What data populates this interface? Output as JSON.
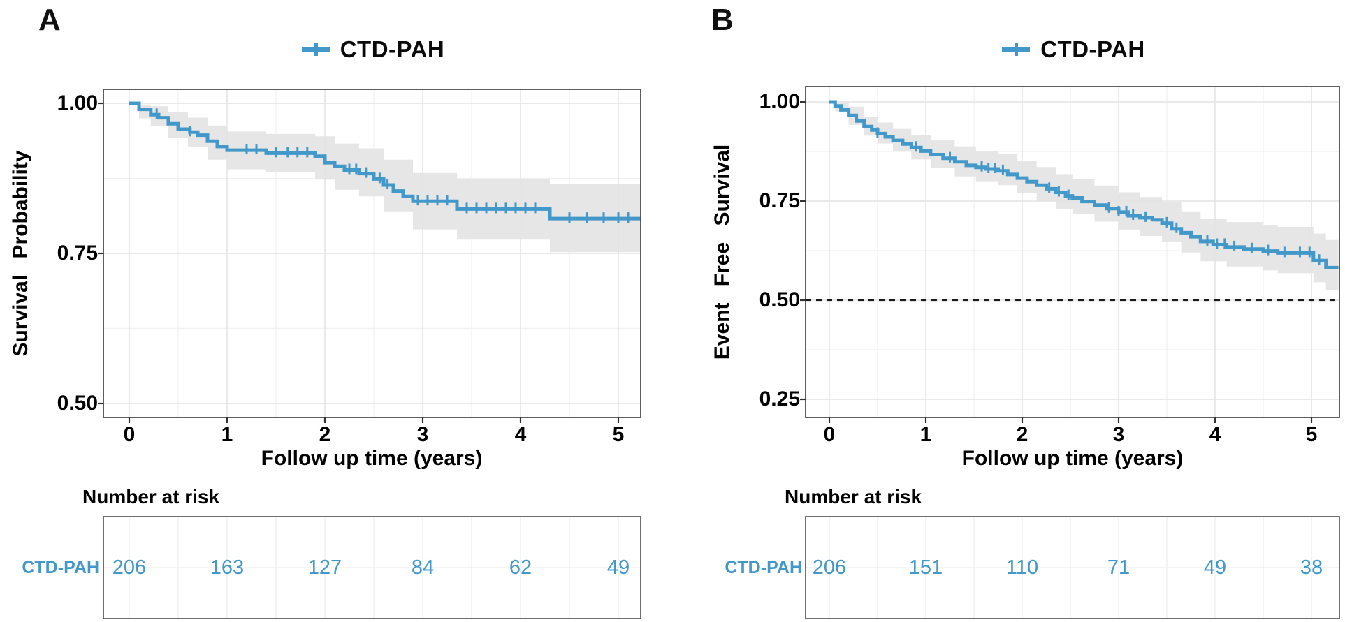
{
  "figure": {
    "colors": {
      "curve_blue": "#4298c8",
      "ci_band": "#e3e3e3",
      "grid_major": "#e4e4e4",
      "grid_minor": "#f1f1f1",
      "plot_border": "#4d4d4d",
      "reference_line": "#1a1a1a",
      "text": "#000000"
    },
    "panels": [
      {
        "label": "A",
        "legend_label": "CTD-PAH",
        "ylabel": "Survival Probability",
        "xlabel": "Follow up time (years)",
        "risk_title": "Number at risk",
        "risk_row_label": "CTD-PAH"
      },
      {
        "label": "B",
        "legend_label": "CTD-PAH",
        "ylabel": "Event Free Survival",
        "xlabel": "Follow up time (years)",
        "risk_title": "Number at risk",
        "risk_row_label": "CTD-PAH"
      }
    ]
  },
  "chart_data": [
    {
      "type": "line",
      "subtype": "kaplan-meier-step",
      "panel": "A",
      "series_name": "CTD-PAH",
      "title": "CTD-PAH",
      "xlabel": "Follow up time (years)",
      "ylabel": "Survival Probability",
      "x_ticks": [
        0,
        1,
        2,
        3,
        4,
        5
      ],
      "y_tick_labels": [
        "1.00",
        "0.75",
        "0.50"
      ],
      "y_ticks": [
        1.0,
        0.75,
        0.5
      ],
      "x_end": 5.23,
      "ylim_shown": [
        0.477,
        1.023
      ],
      "grid": true,
      "legend_position": "top-center",
      "reference_line_y": null,
      "steps": [
        [
          0,
          1.0
        ],
        [
          0.1,
          0.99
        ],
        [
          0.22,
          0.981
        ],
        [
          0.3,
          0.976
        ],
        [
          0.4,
          0.966
        ],
        [
          0.5,
          0.957
        ],
        [
          0.62,
          0.952
        ],
        [
          0.7,
          0.947
        ],
        [
          0.8,
          0.937
        ],
        [
          0.9,
          0.928
        ],
        [
          1.0,
          0.922
        ],
        [
          1.4,
          0.917
        ],
        [
          1.9,
          0.912
        ],
        [
          2.0,
          0.901
        ],
        [
          2.1,
          0.895
        ],
        [
          2.2,
          0.889
        ],
        [
          2.35,
          0.883
        ],
        [
          2.5,
          0.874
        ],
        [
          2.6,
          0.864
        ],
        [
          2.7,
          0.854
        ],
        [
          2.8,
          0.845
        ],
        [
          2.9,
          0.837
        ],
        [
          3.35,
          0.824
        ],
        [
          4.3,
          0.808
        ]
      ],
      "censor_times": [
        0.28,
        0.62,
        1.2,
        1.3,
        1.5,
        1.62,
        1.72,
        1.82,
        2.25,
        2.32,
        2.42,
        2.56,
        2.64,
        2.95,
        3.05,
        3.15,
        3.25,
        3.45,
        3.55,
        3.65,
        3.75,
        3.85,
        3.95,
        4.05,
        4.15,
        4.5,
        4.68,
        4.85,
        5.0,
        5.1
      ],
      "ci": [
        [
          0,
          1,
          1
        ],
        [
          0.1,
          0.975,
          0.998
        ],
        [
          0.22,
          0.962,
          0.995
        ],
        [
          0.4,
          0.942,
          0.985
        ],
        [
          0.6,
          0.928,
          0.976
        ],
        [
          0.8,
          0.906,
          0.963
        ],
        [
          1.0,
          0.89,
          0.953
        ],
        [
          1.4,
          0.885,
          0.949
        ],
        [
          1.9,
          0.873,
          0.945
        ],
        [
          2.1,
          0.856,
          0.933
        ],
        [
          2.35,
          0.845,
          0.925
        ],
        [
          2.6,
          0.82,
          0.906
        ],
        [
          2.9,
          0.79,
          0.884
        ],
        [
          3.35,
          0.773,
          0.874
        ],
        [
          4.3,
          0.752,
          0.866
        ],
        [
          5.23,
          0.752,
          0.866
        ]
      ],
      "risk_table": {
        "title": "Number at risk",
        "row_label": "CTD-PAH",
        "times": [
          0,
          1,
          2,
          3,
          4,
          5
        ],
        "counts": [
          "206",
          "163",
          "127",
          "84",
          "62",
          "49"
        ]
      }
    },
    {
      "type": "line",
      "subtype": "kaplan-meier-step",
      "panel": "B",
      "series_name": "CTD-PAH",
      "title": "CTD-PAH",
      "xlabel": "Follow up time (years)",
      "ylabel": "Event Free Survival",
      "x_ticks": [
        0,
        1,
        2,
        3,
        4,
        5
      ],
      "y_tick_labels": [
        "1.00",
        "0.75",
        "0.50",
        "0.25"
      ],
      "y_ticks": [
        1.0,
        0.75,
        0.5,
        0.25
      ],
      "x_end": 5.28,
      "ylim_shown": [
        0.2,
        1.039
      ],
      "grid": true,
      "legend_position": "top-center",
      "reference_line_y": 0.5,
      "steps": [
        [
          0,
          1.0
        ],
        [
          0.06,
          0.99
        ],
        [
          0.12,
          0.98
        ],
        [
          0.2,
          0.966
        ],
        [
          0.28,
          0.952
        ],
        [
          0.36,
          0.938
        ],
        [
          0.44,
          0.929
        ],
        [
          0.5,
          0.92
        ],
        [
          0.58,
          0.912
        ],
        [
          0.66,
          0.903
        ],
        [
          0.76,
          0.894
        ],
        [
          0.85,
          0.885
        ],
        [
          0.95,
          0.876
        ],
        [
          1.05,
          0.867
        ],
        [
          1.18,
          0.858
        ],
        [
          1.3,
          0.849
        ],
        [
          1.42,
          0.84
        ],
        [
          1.52,
          0.835
        ],
        [
          1.62,
          0.831
        ],
        [
          1.75,
          0.826
        ],
        [
          1.85,
          0.817
        ],
        [
          1.95,
          0.808
        ],
        [
          2.05,
          0.799
        ],
        [
          2.15,
          0.79
        ],
        [
          2.25,
          0.781
        ],
        [
          2.35,
          0.772
        ],
        [
          2.45,
          0.763
        ],
        [
          2.52,
          0.758
        ],
        [
          2.62,
          0.749
        ],
        [
          2.75,
          0.74
        ],
        [
          2.88,
          0.731
        ],
        [
          3.0,
          0.722
        ],
        [
          3.1,
          0.713
        ],
        [
          3.22,
          0.708
        ],
        [
          3.35,
          0.703
        ],
        [
          3.45,
          0.694
        ],
        [
          3.55,
          0.68
        ],
        [
          3.65,
          0.67
        ],
        [
          3.75,
          0.66
        ],
        [
          3.85,
          0.648
        ],
        [
          3.98,
          0.64
        ],
        [
          4.12,
          0.634
        ],
        [
          4.3,
          0.629
        ],
        [
          4.5,
          0.624
        ],
        [
          4.65,
          0.619
        ],
        [
          5.02,
          0.6
        ],
        [
          5.15,
          0.582
        ]
      ],
      "censor_times": [
        0.5,
        0.9,
        1.25,
        1.58,
        1.65,
        1.72,
        1.8,
        2.28,
        2.38,
        2.48,
        2.9,
        3.0,
        3.08,
        3.15,
        3.28,
        3.5,
        3.6,
        3.92,
        4.02,
        4.1,
        4.2,
        4.38,
        4.55,
        4.72,
        4.88,
        4.98,
        5.08
      ],
      "ci": [
        [
          0,
          1,
          1
        ],
        [
          0.06,
          0.976,
          0.999
        ],
        [
          0.2,
          0.942,
          0.988
        ],
        [
          0.36,
          0.915,
          0.962
        ],
        [
          0.5,
          0.895,
          0.948
        ],
        [
          0.66,
          0.875,
          0.932
        ],
        [
          0.85,
          0.855,
          0.917
        ],
        [
          1.05,
          0.833,
          0.903
        ],
        [
          1.3,
          0.812,
          0.888
        ],
        [
          1.52,
          0.8,
          0.876
        ],
        [
          1.75,
          0.79,
          0.868
        ],
        [
          1.95,
          0.77,
          0.852
        ],
        [
          2.15,
          0.75,
          0.836
        ],
        [
          2.35,
          0.73,
          0.818
        ],
        [
          2.52,
          0.718,
          0.806
        ],
        [
          2.75,
          0.698,
          0.789
        ],
        [
          3.0,
          0.678,
          0.772
        ],
        [
          3.22,
          0.662,
          0.76
        ],
        [
          3.45,
          0.648,
          0.748
        ],
        [
          3.65,
          0.62,
          0.724
        ],
        [
          3.85,
          0.598,
          0.706
        ],
        [
          4.12,
          0.585,
          0.697
        ],
        [
          4.5,
          0.575,
          0.69
        ],
        [
          4.65,
          0.568,
          0.685
        ],
        [
          5.02,
          0.545,
          0.668
        ],
        [
          5.15,
          0.525,
          0.652
        ],
        [
          5.28,
          0.52,
          0.648
        ]
      ],
      "risk_table": {
        "title": "Number at risk",
        "row_label": "CTD-PAH",
        "times": [
          0,
          1,
          2,
          3,
          4,
          5
        ],
        "counts": [
          "206",
          "151",
          "110",
          "71",
          "49",
          "38"
        ]
      }
    }
  ]
}
